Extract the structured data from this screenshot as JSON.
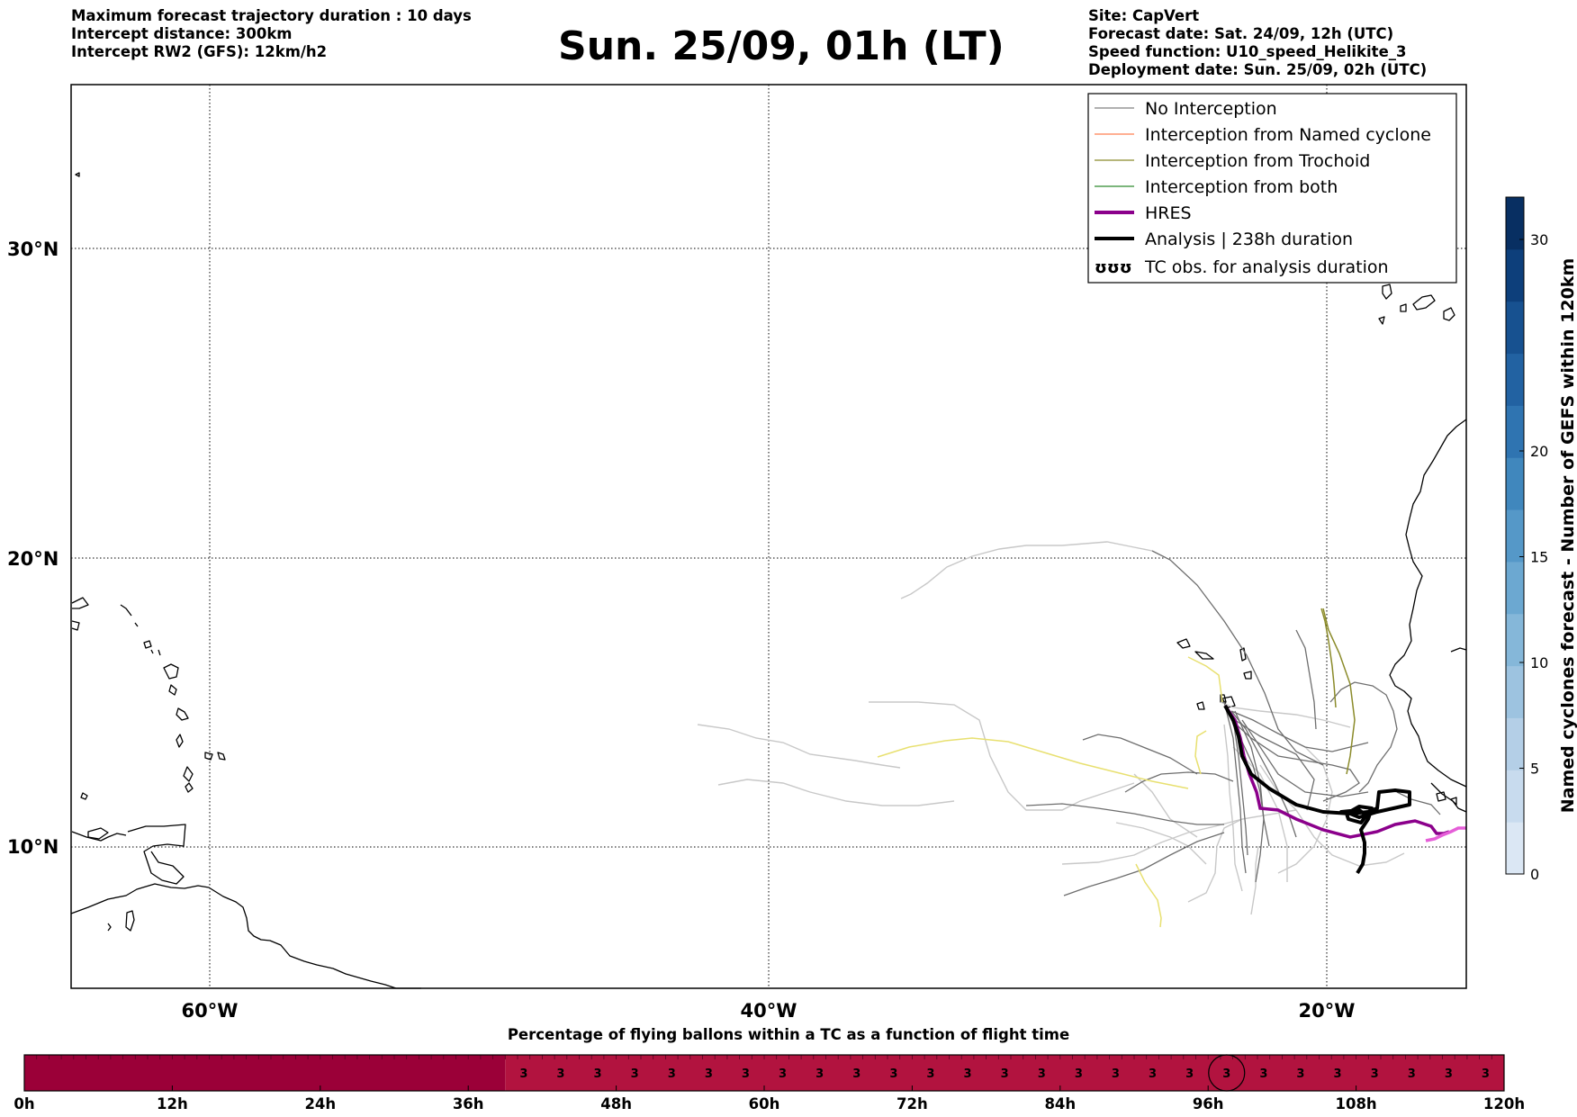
{
  "header": {
    "left_lines": [
      "Maximum forecast trajectory duration : 10 days",
      "Intercept distance: 300km",
      "Intercept RW2 (GFS):  12km/h2"
    ],
    "title": "Sun. 25/09, 01h (LT)",
    "right_lines": [
      "Site: CapVert",
      "Forecast date: Sat. 24/09, 12h (UTC)",
      "Speed function: U10_speed_Helikite_3",
      "Deployment date: Sun. 25/09, 02h (UTC)"
    ]
  },
  "map": {
    "lat_labels": [
      "30°N",
      "20°N",
      "10°N"
    ],
    "lon_labels": [
      "60°W",
      "40°W",
      "20°W"
    ],
    "lon_range": [
      -65,
      -15
    ],
    "lat_range": [
      5.5,
      35
    ],
    "grid": "dotted"
  },
  "legend": {
    "items": [
      {
        "label": "No Interception",
        "color": "#808080",
        "style": "thin"
      },
      {
        "label": "Interception from Named cyclone",
        "color": "#ff7f50",
        "style": "thin"
      },
      {
        "label": "Interception from Trochoid",
        "color": "#8b8b2a",
        "style": "thin"
      },
      {
        "label": "Interception from both",
        "color": "#2e8b2e",
        "style": "thin"
      },
      {
        "label": "HRES",
        "color": "#8b008b",
        "style": "thick"
      },
      {
        "label": "Analysis | 238h duration",
        "color": "#000000",
        "style": "thick"
      },
      {
        "label": "TC obs. for analysis duration",
        "color": "#000000",
        "style": "symbol"
      }
    ],
    "symbol_text": "ʊʊʊ"
  },
  "colorbar": {
    "label": "Named cyclones forecast - Number of GEFS within 120km",
    "ticks": [
      "0",
      "5",
      "10",
      "15",
      "20",
      "30"
    ],
    "range": [
      0,
      32
    ],
    "colors": [
      "#dbe7f4",
      "#c8dbee",
      "#b4cfe7",
      "#9dc3e0",
      "#85b7d9",
      "#6ca8d1",
      "#5598c8",
      "#4087bd",
      "#2f74b1",
      "#2262a2",
      "#175190",
      "#0d3f7b",
      "#082f62"
    ]
  },
  "timeline": {
    "title": "Percentage of flying ballons within a TC as a function of flight time",
    "ticks": [
      "0h",
      "12h",
      "24h",
      "36h",
      "48h",
      "60h",
      "72h",
      "84h",
      "96h",
      "108h",
      "120h"
    ],
    "dark_color": "#9b0038",
    "light_color": "#b2133f",
    "start_hour": 39,
    "cell_value": "3",
    "cell_hours": 3,
    "circled_hour": 97.5
  }
}
